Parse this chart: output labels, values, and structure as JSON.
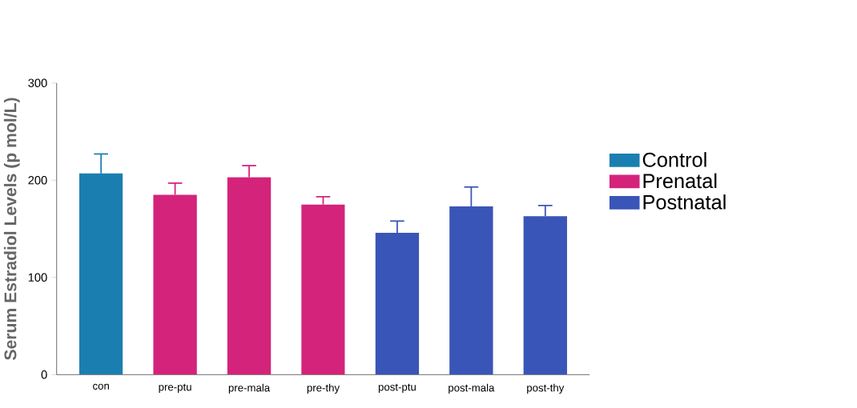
{
  "chart_data": {
    "type": "bar",
    "ylabel": "Serum Estradiol Levels (p mol/L)",
    "categories": [
      "con",
      "pre-ptu",
      "pre-mala",
      "pre-thy",
      "post-ptu",
      "post-mala",
      "post-thy"
    ],
    "series": [
      {
        "name": "Control",
        "color": "#1a7fb0",
        "values": [
          207,
          null,
          null,
          null,
          null,
          null,
          null
        ],
        "errors": [
          [
            207,
            227
          ],
          null,
          null,
          null,
          null,
          null,
          null
        ]
      },
      {
        "name": "Prenatal",
        "color": "#d4237a",
        "values": [
          null,
          185,
          203,
          175,
          null,
          null,
          null
        ],
        "errors": [
          null,
          [
            185,
            197
          ],
          [
            203,
            215
          ],
          [
            175,
            183
          ],
          null,
          null,
          null
        ]
      },
      {
        "name": "Postnatal",
        "color": "#3a55b8",
        "values": [
          null,
          null,
          null,
          null,
          146,
          173,
          163
        ],
        "errors": [
          null,
          null,
          null,
          null,
          [
            146,
            158
          ],
          [
            173,
            193
          ],
          [
            163,
            174
          ]
        ]
      }
    ],
    "ylim": [
      0,
      300
    ],
    "yticks": [
      0,
      100,
      200,
      300
    ],
    "legend": "right"
  }
}
